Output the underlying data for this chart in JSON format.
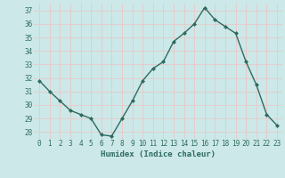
{
  "x": [
    0,
    1,
    2,
    3,
    4,
    5,
    6,
    7,
    8,
    9,
    10,
    11,
    12,
    13,
    14,
    15,
    16,
    17,
    18,
    19,
    20,
    21,
    22,
    23
  ],
  "y": [
    31.8,
    31.0,
    30.3,
    29.6,
    29.3,
    29.0,
    27.8,
    27.7,
    29.0,
    30.3,
    31.8,
    32.7,
    33.2,
    34.7,
    35.3,
    36.0,
    37.2,
    36.3,
    35.8,
    35.3,
    33.2,
    31.5,
    29.3,
    28.5
  ],
  "xlim": [
    -0.5,
    23.5
  ],
  "ylim": [
    27.5,
    37.5
  ],
  "yticks": [
    28,
    29,
    30,
    31,
    32,
    33,
    34,
    35,
    36,
    37
  ],
  "xticks": [
    0,
    1,
    2,
    3,
    4,
    5,
    6,
    7,
    8,
    9,
    10,
    11,
    12,
    13,
    14,
    15,
    16,
    17,
    18,
    19,
    20,
    21,
    22,
    23
  ],
  "xlabel": "Humidex (Indice chaleur)",
  "line_color": "#2e6b5e",
  "marker": "D",
  "marker_size": 2.0,
  "bg_color": "#cce8e8",
  "grid_color": "#e8c8c8",
  "text_color": "#2e6b5e",
  "axis_label_fontsize": 6.5,
  "tick_fontsize": 5.5,
  "linewidth": 1.0
}
